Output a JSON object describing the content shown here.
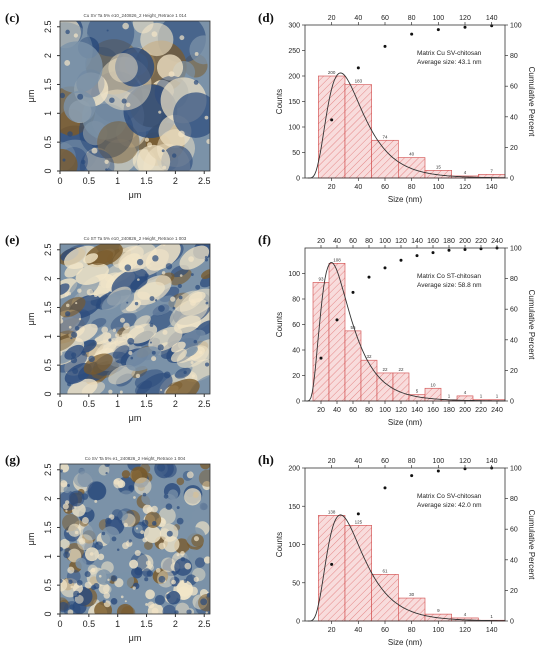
{
  "panels": [
    {
      "label": "(c)",
      "type": "afm",
      "title": "Cu SV Ta 5% e10_240826_2 Height_Retrace 1 014",
      "axis_label": "μm",
      "ticks": [
        "0",
        "0.5",
        "1",
        "1.5",
        "2",
        "2.5"
      ],
      "seed": 11,
      "style": "large"
    },
    {
      "label": "(e)",
      "type": "afm",
      "title": "Co ST Ta 5% e10_240826_2 Height_Retrace 1 003",
      "axis_label": "μm",
      "ticks": [
        "0",
        "0.5",
        "1",
        "1.5",
        "2",
        "2.5"
      ],
      "seed": 23,
      "style": "streak"
    },
    {
      "label": "(g)",
      "type": "afm",
      "title": "Co SV Ta 5% e1_240826_2 Height_Retrace 1 004",
      "axis_label": "μm",
      "ticks": [
        "0",
        "0.5",
        "1",
        "1.5",
        "2",
        "2.5"
      ],
      "seed": 37,
      "style": "fine"
    }
  ],
  "colors": {
    "bar_fill": "#f8dcdc",
    "bar_stroke": "#d04848",
    "hatch": "#e07070",
    "fit_line": "#333333",
    "cumulative_dot": "#111111",
    "afm_dark": "#2a4a7c",
    "afm_mid": "#7b92a8",
    "afm_light": "#f3e6c8",
    "afm_brown": "#7a5a2a"
  },
  "chart_data": [
    {
      "label": "(d)",
      "type": "bar",
      "annotation_line1": "Matrix Cu SV-chitosan",
      "annotation_line2": "Average size: 43.1 nm",
      "xlabel": "Size (nm)",
      "ylabel": "Counts",
      "ylabel_right": "Cumulative Percent",
      "xlim": [
        0,
        150
      ],
      "ylim": [
        0,
        300
      ],
      "y2lim": [
        0,
        100
      ],
      "bottom_ticks": [
        20,
        40,
        60,
        80,
        100,
        120,
        140
      ],
      "top_ticks": [
        20,
        40,
        60,
        80,
        100,
        120,
        140
      ],
      "left_ticks": [
        0,
        50,
        100,
        150,
        200,
        250,
        300
      ],
      "right_ticks": [
        0,
        20,
        40,
        60,
        80,
        100
      ],
      "bin_width": 20,
      "bin_starts": [
        10,
        30,
        50,
        70,
        90,
        110,
        130
      ],
      "values": [
        200,
        183,
        74,
        40,
        15,
        4,
        7
      ],
      "value_labels": [
        "200",
        "183",
        "74",
        "40",
        "15",
        "4",
        "7"
      ],
      "cumulative": [
        {
          "x": 20,
          "y": 38
        },
        {
          "x": 40,
          "y": 72
        },
        {
          "x": 60,
          "y": 86
        },
        {
          "x": 80,
          "y": 94
        },
        {
          "x": 100,
          "y": 97
        },
        {
          "x": 120,
          "y": 98.5
        },
        {
          "x": 140,
          "y": 99.5
        }
      ],
      "fit_peak": 28,
      "fit_height": 205,
      "fit_sigma": 0.5
    },
    {
      "label": "(f)",
      "type": "bar",
      "annotation_line1": "Matrix Co ST-chitosan",
      "annotation_line2": "Average size: 58.8 nm",
      "xlabel": "Size (nm)",
      "ylabel": "Counts",
      "ylabel_right": "Cumulative Percent",
      "xlim": [
        0,
        250
      ],
      "ylim": [
        0,
        120
      ],
      "y2lim": [
        0,
        100
      ],
      "bottom_ticks": [
        20,
        40,
        60,
        80,
        100,
        120,
        140,
        160,
        180,
        200,
        220,
        240
      ],
      "top_ticks": [
        20,
        40,
        60,
        80,
        100,
        120,
        140,
        160,
        180,
        200,
        220,
        240
      ],
      "left_ticks": [
        0,
        20,
        40,
        60,
        80,
        100
      ],
      "right_ticks": [
        0,
        20,
        40,
        60,
        80,
        100
      ],
      "bin_width": 20,
      "bin_starts": [
        10,
        30,
        50,
        70,
        90,
        110,
        130,
        150,
        170,
        190,
        210,
        230
      ],
      "values": [
        93,
        108,
        55,
        32,
        22,
        22,
        5,
        10,
        1,
        4,
        1,
        1
      ],
      "value_labels": [
        "93",
        "108",
        "55",
        "32",
        "22",
        "22",
        "5",
        "10",
        "1",
        "4",
        "1",
        "1"
      ],
      "cumulative": [
        {
          "x": 20,
          "y": 28
        },
        {
          "x": 40,
          "y": 53
        },
        {
          "x": 60,
          "y": 71
        },
        {
          "x": 80,
          "y": 81
        },
        {
          "x": 100,
          "y": 87
        },
        {
          "x": 120,
          "y": 92
        },
        {
          "x": 140,
          "y": 95
        },
        {
          "x": 160,
          "y": 97
        },
        {
          "x": 180,
          "y": 98.5
        },
        {
          "x": 200,
          "y": 99
        },
        {
          "x": 220,
          "y": 99.5
        },
        {
          "x": 240,
          "y": 100
        }
      ],
      "fit_peak": 35,
      "fit_height": 108,
      "fit_sigma": 0.55
    },
    {
      "label": "(h)",
      "type": "bar",
      "annotation_line1": "Matrix Co SV-chitosan",
      "annotation_line2": "Average size: 42.0 nm",
      "xlabel": "Size (nm)",
      "ylabel": "Counts",
      "ylabel_right": "Cumulative Percent",
      "xlim": [
        0,
        150
      ],
      "ylim": [
        0,
        200
      ],
      "y2lim": [
        0,
        100
      ],
      "bottom_ticks": [
        20,
        40,
        60,
        80,
        100,
        120,
        140
      ],
      "top_ticks": [
        20,
        40,
        60,
        80,
        100,
        120,
        140
      ],
      "left_ticks": [
        0,
        50,
        100,
        150,
        200
      ],
      "right_ticks": [
        0,
        20,
        40,
        60,
        80,
        100
      ],
      "bin_width": 20,
      "bin_starts": [
        10,
        30,
        50,
        70,
        90,
        110,
        130
      ],
      "values": [
        138,
        125,
        61,
        30,
        9,
        4,
        1
      ],
      "value_labels": [
        "138",
        "125",
        "61",
        "30",
        "9",
        "4",
        "1"
      ],
      "cumulative": [
        {
          "x": 20,
          "y": 37
        },
        {
          "x": 40,
          "y": 70
        },
        {
          "x": 60,
          "y": 87
        },
        {
          "x": 80,
          "y": 95
        },
        {
          "x": 100,
          "y": 98
        },
        {
          "x": 120,
          "y": 99.5
        },
        {
          "x": 140,
          "y": 100
        }
      ],
      "fit_peak": 28,
      "fit_height": 138,
      "fit_sigma": 0.5
    }
  ]
}
